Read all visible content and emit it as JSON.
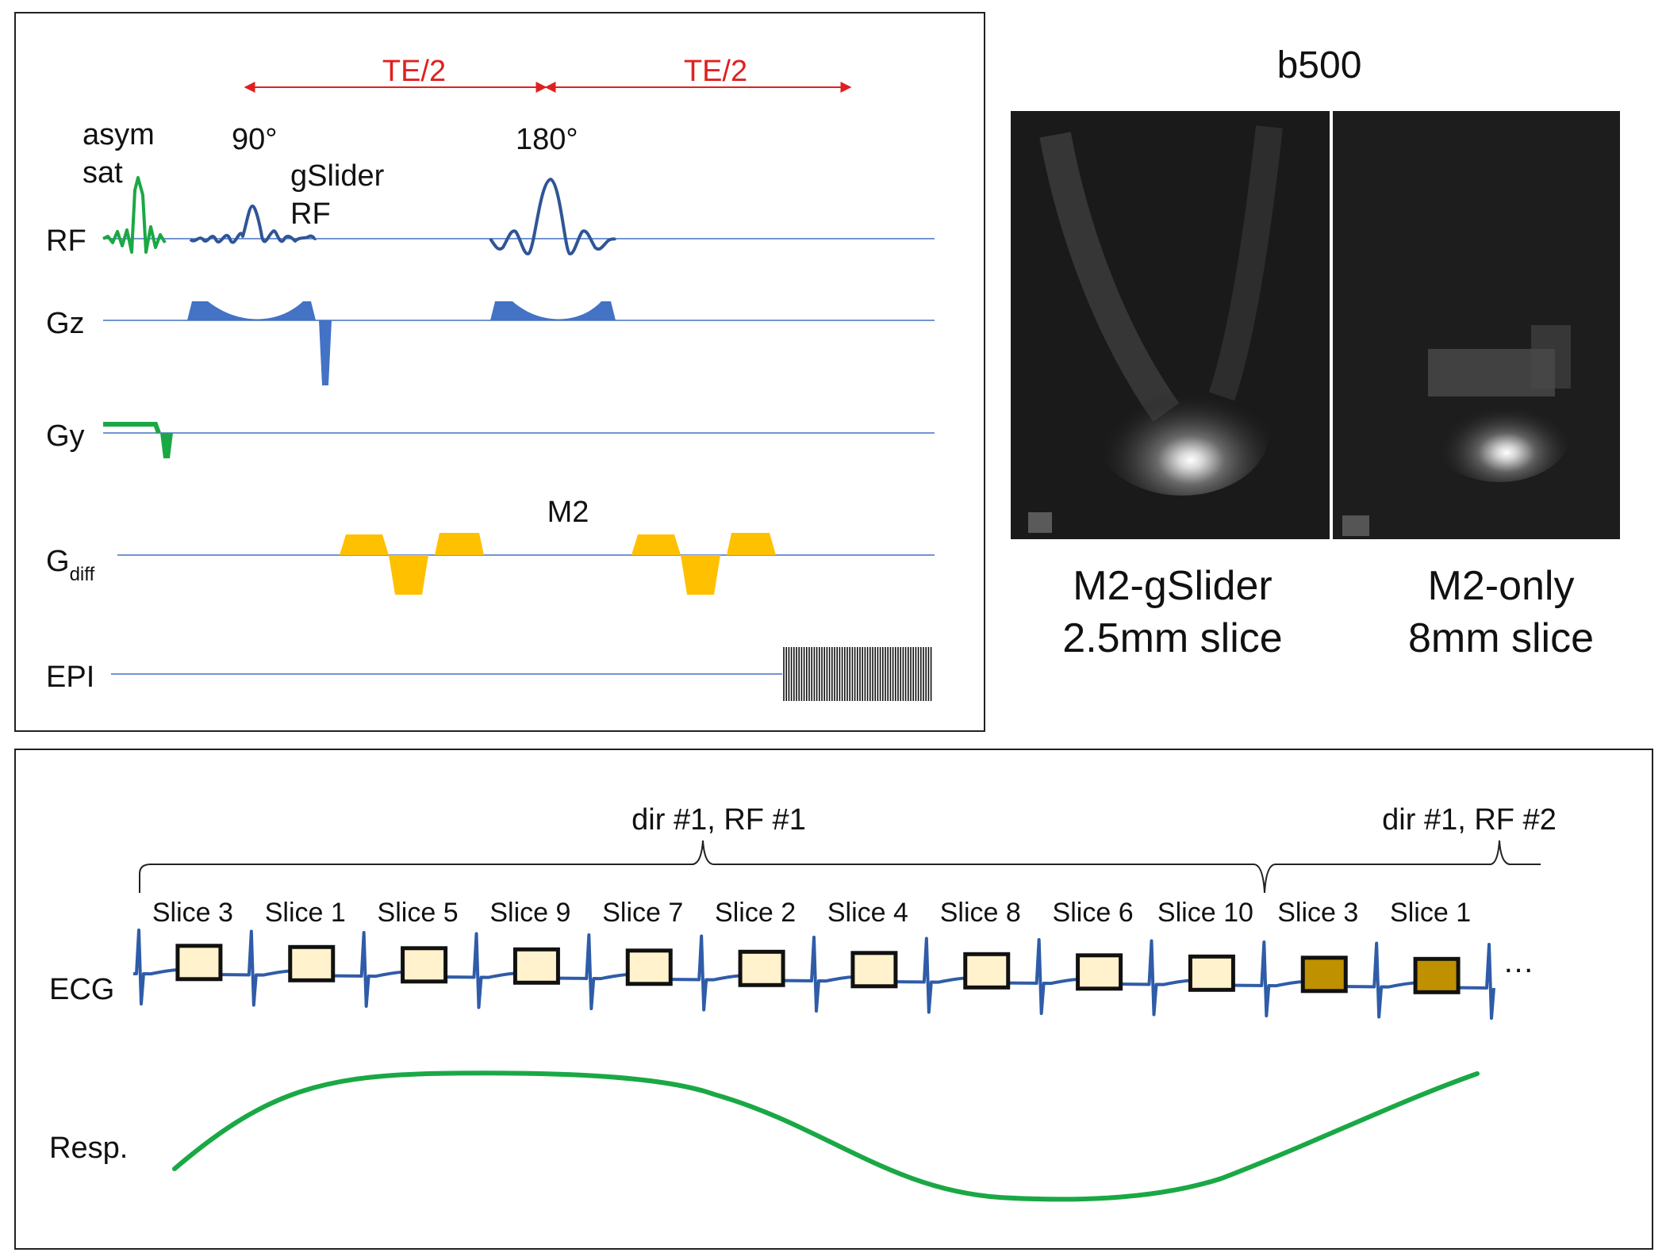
{
  "colors": {
    "blue_line": "#4472c4",
    "navy_rf": "#2f5596",
    "green": "#1aa845",
    "gz_fill": "#4472c4",
    "diff_fill": "#ffc000",
    "red": "#e02020",
    "ecg_line": "#2f5ca8",
    "box_light": "#fff2cc",
    "box_dark": "#bf9000",
    "resp": "#1aa845"
  },
  "sequence": {
    "te_label_1": "TE/2",
    "te_label_2": "TE/2",
    "asym_line1": "asym",
    "asym_line2": "sat",
    "flip90": "90°",
    "flip180": "180°",
    "gslider_line1": "gSlider",
    "gslider_line2": "RF",
    "m2_label": "M2",
    "rows": {
      "rf": "RF",
      "gz": "Gz",
      "gy": "Gy",
      "gdiff_main": "G",
      "gdiff_sub": "diff",
      "epi": "EPI"
    }
  },
  "images": {
    "title": "b500",
    "left_caption_1": "M2-gSlider",
    "left_caption_2": "2.5mm slice",
    "right_caption_1": "M2-only",
    "right_caption_2": "8mm slice",
    "left_image_icon": "mri-heart-image",
    "right_image_icon": "mri-heart-image"
  },
  "timing": {
    "group1_label": "dir #1, RF #1",
    "group2_label": "dir #1, RF #2",
    "slices": [
      {
        "label": "Slice 3",
        "shade": "light"
      },
      {
        "label": "Slice 1",
        "shade": "light"
      },
      {
        "label": "Slice 5",
        "shade": "light"
      },
      {
        "label": "Slice 9",
        "shade": "light"
      },
      {
        "label": "Slice 7",
        "shade": "light"
      },
      {
        "label": "Slice 2",
        "shade": "light"
      },
      {
        "label": "Slice 4",
        "shade": "light"
      },
      {
        "label": "Slice 8",
        "shade": "light"
      },
      {
        "label": "Slice 6",
        "shade": "light"
      },
      {
        "label": "Slice 10",
        "shade": "light"
      },
      {
        "label": "Slice 3",
        "shade": "dark"
      },
      {
        "label": "Slice 1",
        "shade": "dark"
      }
    ],
    "ellipsis": "…",
    "ecg_label": "ECG",
    "resp_label": "Resp."
  }
}
